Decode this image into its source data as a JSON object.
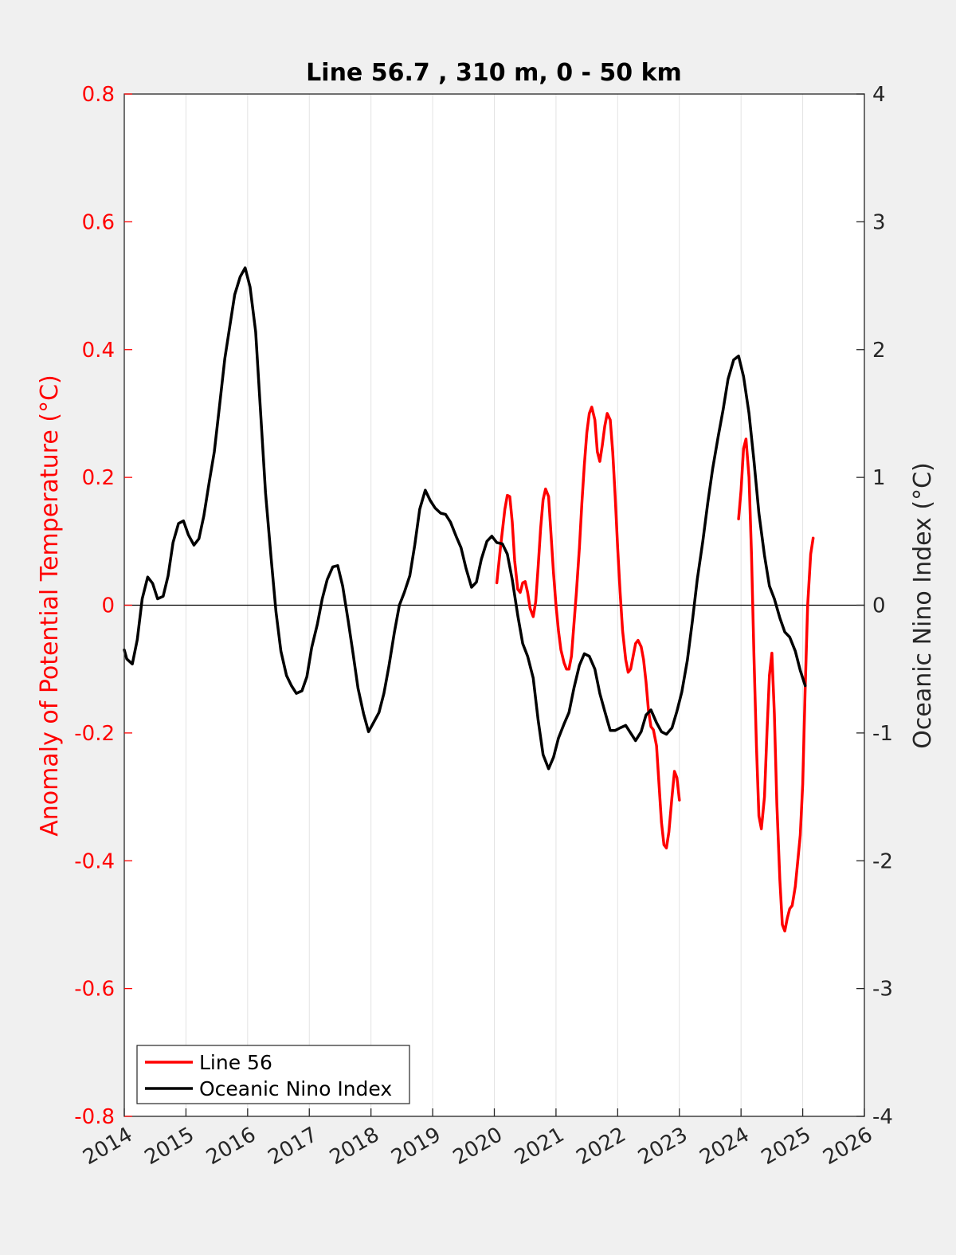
{
  "chart_data": {
    "type": "line",
    "title": "Line 56.7 , 310 m, 0 - 50 km",
    "xlabel": "",
    "ylabel_left": "Anomaly of Potential Temperature (°C)",
    "ylabel_right": "Oceanic Nino Index (°C)",
    "xlim": [
      2014,
      2026
    ],
    "ylim_left": [
      -0.8,
      0.8
    ],
    "ylim_right": [
      -4,
      4
    ],
    "x_ticks": [
      "2014",
      "2015",
      "2016",
      "2017",
      "2018",
      "2019",
      "2020",
      "2021",
      "2022",
      "2023",
      "2024",
      "2025",
      "2026"
    ],
    "y_ticks_left": [
      "-0.8",
      "-0.6",
      "-0.4",
      "-0.2",
      "0",
      "0.2",
      "0.4",
      "0.6",
      "0.8"
    ],
    "y_ticks_right": [
      "-4",
      "-3",
      "-2",
      "-1",
      "0",
      "1",
      "2",
      "3",
      "4"
    ],
    "grid": "vertical",
    "zero_line": true,
    "legend_position": "bottom-left",
    "colors": {
      "line56": "#ff0000",
      "oni": "#000000",
      "left_axis": "#ff0000",
      "right_axis": "#262626"
    },
    "series": [
      {
        "name": "Line 56",
        "axis": "left",
        "segments": [
          [
            [
              2020.04,
              0.035
            ],
            [
              2020.1,
              0.09
            ],
            [
              2020.17,
              0.15
            ],
            [
              2020.21,
              0.172
            ],
            [
              2020.25,
              0.17
            ],
            [
              2020.29,
              0.13
            ],
            [
              2020.33,
              0.07
            ],
            [
              2020.38,
              0.025
            ],
            [
              2020.42,
              0.02
            ],
            [
              2020.46,
              0.035
            ],
            [
              2020.5,
              0.037
            ],
            [
              2020.54,
              0.02
            ],
            [
              2020.58,
              -0.005
            ],
            [
              2020.63,
              -0.018
            ],
            [
              2020.67,
              0.005
            ],
            [
              2020.71,
              0.06
            ],
            [
              2020.75,
              0.12
            ],
            [
              2020.79,
              0.165
            ],
            [
              2020.83,
              0.182
            ],
            [
              2020.88,
              0.17
            ],
            [
              2020.92,
              0.11
            ],
            [
              2020.96,
              0.05
            ],
            [
              2021.0,
              0.0
            ],
            [
              2021.04,
              -0.04
            ],
            [
              2021.08,
              -0.07
            ],
            [
              2021.13,
              -0.09
            ],
            [
              2021.17,
              -0.1
            ],
            [
              2021.21,
              -0.1
            ],
            [
              2021.25,
              -0.08
            ],
            [
              2021.29,
              -0.03
            ],
            [
              2021.33,
              0.02
            ],
            [
              2021.38,
              0.09
            ],
            [
              2021.42,
              0.16
            ],
            [
              2021.46,
              0.22
            ],
            [
              2021.5,
              0.27
            ],
            [
              2021.54,
              0.3
            ],
            [
              2021.58,
              0.31
            ],
            [
              2021.63,
              0.29
            ],
            [
              2021.67,
              0.24
            ],
            [
              2021.71,
              0.225
            ],
            [
              2021.75,
              0.25
            ],
            [
              2021.79,
              0.28
            ],
            [
              2021.83,
              0.3
            ],
            [
              2021.88,
              0.29
            ],
            [
              2021.92,
              0.24
            ],
            [
              2021.96,
              0.17
            ],
            [
              2022.0,
              0.09
            ],
            [
              2022.04,
              0.02
            ],
            [
              2022.08,
              -0.04
            ],
            [
              2022.13,
              -0.085
            ],
            [
              2022.17,
              -0.105
            ],
            [
              2022.21,
              -0.1
            ],
            [
              2022.25,
              -0.08
            ],
            [
              2022.29,
              -0.06
            ],
            [
              2022.33,
              -0.055
            ],
            [
              2022.38,
              -0.065
            ],
            [
              2022.42,
              -0.085
            ],
            [
              2022.46,
              -0.12
            ],
            [
              2022.5,
              -0.165
            ],
            [
              2022.54,
              -0.19
            ],
            [
              2022.58,
              -0.195
            ],
            [
              2022.63,
              -0.22
            ],
            [
              2022.67,
              -0.28
            ],
            [
              2022.71,
              -0.34
            ],
            [
              2022.75,
              -0.375
            ],
            [
              2022.79,
              -0.38
            ],
            [
              2022.83,
              -0.355
            ],
            [
              2022.88,
              -0.3
            ],
            [
              2022.92,
              -0.26
            ],
            [
              2022.96,
              -0.27
            ],
            [
              2023.0,
              -0.305
            ]
          ],
          [
            [
              2023.96,
              0.135
            ],
            [
              2024.0,
              0.18
            ],
            [
              2024.04,
              0.245
            ],
            [
              2024.08,
              0.26
            ],
            [
              2024.13,
              0.2
            ],
            [
              2024.17,
              0.08
            ],
            [
              2024.21,
              -0.08
            ],
            [
              2024.25,
              -0.22
            ],
            [
              2024.29,
              -0.33
            ],
            [
              2024.33,
              -0.35
            ],
            [
              2024.38,
              -0.3
            ],
            [
              2024.42,
              -0.2
            ],
            [
              2024.46,
              -0.11
            ],
            [
              2024.5,
              -0.075
            ],
            [
              2024.54,
              -0.17
            ],
            [
              2024.58,
              -0.31
            ],
            [
              2024.63,
              -0.43
            ],
            [
              2024.67,
              -0.5
            ],
            [
              2024.71,
              -0.51
            ],
            [
              2024.75,
              -0.49
            ],
            [
              2024.79,
              -0.475
            ],
            [
              2024.83,
              -0.47
            ],
            [
              2024.88,
              -0.44
            ],
            [
              2024.92,
              -0.4
            ],
            [
              2024.96,
              -0.36
            ],
            [
              2025.0,
              -0.28
            ],
            [
              2025.04,
              -0.13
            ],
            [
              2025.08,
              0.0
            ],
            [
              2025.13,
              0.08
            ],
            [
              2025.17,
              0.105
            ]
          ]
        ]
      },
      {
        "name": "Oceanic Nino Index",
        "axis": "right",
        "points": [
          [
            2014.0,
            -0.35
          ],
          [
            2014.04,
            -0.42
          ],
          [
            2014.13,
            -0.46
          ],
          [
            2014.21,
            -0.27
          ],
          [
            2014.29,
            0.05
          ],
          [
            2014.38,
            0.22
          ],
          [
            2014.46,
            0.17
          ],
          [
            2014.54,
            0.05
          ],
          [
            2014.63,
            0.07
          ],
          [
            2014.71,
            0.23
          ],
          [
            2014.79,
            0.49
          ],
          [
            2014.88,
            0.64
          ],
          [
            2014.96,
            0.66
          ],
          [
            2015.04,
            0.55
          ],
          [
            2015.13,
            0.47
          ],
          [
            2015.21,
            0.52
          ],
          [
            2015.29,
            0.7
          ],
          [
            2015.38,
            0.97
          ],
          [
            2015.46,
            1.2
          ],
          [
            2015.54,
            1.54
          ],
          [
            2015.63,
            1.93
          ],
          [
            2015.71,
            2.18
          ],
          [
            2015.79,
            2.43
          ],
          [
            2015.88,
            2.57
          ],
          [
            2015.96,
            2.64
          ],
          [
            2016.04,
            2.49
          ],
          [
            2016.13,
            2.14
          ],
          [
            2016.21,
            1.51
          ],
          [
            2016.29,
            0.88
          ],
          [
            2016.38,
            0.37
          ],
          [
            2016.46,
            -0.05
          ],
          [
            2016.54,
            -0.36
          ],
          [
            2016.63,
            -0.55
          ],
          [
            2016.71,
            -0.63
          ],
          [
            2016.79,
            -0.69
          ],
          [
            2016.88,
            -0.67
          ],
          [
            2016.96,
            -0.56
          ],
          [
            2017.04,
            -0.33
          ],
          [
            2017.13,
            -0.15
          ],
          [
            2017.21,
            0.05
          ],
          [
            2017.29,
            0.2
          ],
          [
            2017.38,
            0.3
          ],
          [
            2017.46,
            0.31
          ],
          [
            2017.54,
            0.15
          ],
          [
            2017.63,
            -0.12
          ],
          [
            2017.71,
            -0.38
          ],
          [
            2017.79,
            -0.65
          ],
          [
            2017.88,
            -0.85
          ],
          [
            2017.96,
            -0.99
          ],
          [
            2018.04,
            -0.92
          ],
          [
            2018.13,
            -0.84
          ],
          [
            2018.21,
            -0.69
          ],
          [
            2018.29,
            -0.48
          ],
          [
            2018.38,
            -0.21
          ],
          [
            2018.46,
            0.0
          ],
          [
            2018.54,
            0.1
          ],
          [
            2018.63,
            0.23
          ],
          [
            2018.71,
            0.47
          ],
          [
            2018.79,
            0.75
          ],
          [
            2018.88,
            0.9
          ],
          [
            2018.96,
            0.82
          ],
          [
            2019.04,
            0.76
          ],
          [
            2019.13,
            0.72
          ],
          [
            2019.21,
            0.71
          ],
          [
            2019.29,
            0.65
          ],
          [
            2019.38,
            0.54
          ],
          [
            2019.46,
            0.45
          ],
          [
            2019.54,
            0.29
          ],
          [
            2019.63,
            0.14
          ],
          [
            2019.71,
            0.18
          ],
          [
            2019.79,
            0.36
          ],
          [
            2019.88,
            0.5
          ],
          [
            2019.96,
            0.54
          ],
          [
            2020.04,
            0.49
          ],
          [
            2020.13,
            0.48
          ],
          [
            2020.21,
            0.4
          ],
          [
            2020.29,
            0.2
          ],
          [
            2020.38,
            -0.08
          ],
          [
            2020.46,
            -0.3
          ],
          [
            2020.54,
            -0.4
          ],
          [
            2020.63,
            -0.57
          ],
          [
            2020.71,
            -0.9
          ],
          [
            2020.79,
            -1.17
          ],
          [
            2020.88,
            -1.28
          ],
          [
            2020.96,
            -1.19
          ],
          [
            2021.04,
            -1.04
          ],
          [
            2021.13,
            -0.93
          ],
          [
            2021.21,
            -0.84
          ],
          [
            2021.29,
            -0.65
          ],
          [
            2021.38,
            -0.47
          ],
          [
            2021.46,
            -0.38
          ],
          [
            2021.54,
            -0.4
          ],
          [
            2021.63,
            -0.5
          ],
          [
            2021.71,
            -0.69
          ],
          [
            2021.79,
            -0.83
          ],
          [
            2021.88,
            -0.98
          ],
          [
            2021.96,
            -0.98
          ],
          [
            2022.04,
            -0.96
          ],
          [
            2022.13,
            -0.94
          ],
          [
            2022.21,
            -1.0
          ],
          [
            2022.29,
            -1.06
          ],
          [
            2022.38,
            -0.99
          ],
          [
            2022.46,
            -0.86
          ],
          [
            2022.54,
            -0.82
          ],
          [
            2022.63,
            -0.92
          ],
          [
            2022.71,
            -0.99
          ],
          [
            2022.79,
            -1.01
          ],
          [
            2022.88,
            -0.96
          ],
          [
            2022.96,
            -0.83
          ],
          [
            2023.04,
            -0.68
          ],
          [
            2023.13,
            -0.43
          ],
          [
            2023.21,
            -0.13
          ],
          [
            2023.29,
            0.2
          ],
          [
            2023.38,
            0.5
          ],
          [
            2023.46,
            0.8
          ],
          [
            2023.54,
            1.07
          ],
          [
            2023.63,
            1.32
          ],
          [
            2023.71,
            1.53
          ],
          [
            2023.79,
            1.77
          ],
          [
            2023.88,
            1.92
          ],
          [
            2023.96,
            1.95
          ],
          [
            2024.04,
            1.79
          ],
          [
            2024.13,
            1.5
          ],
          [
            2024.21,
            1.13
          ],
          [
            2024.29,
            0.72
          ],
          [
            2024.38,
            0.39
          ],
          [
            2024.46,
            0.15
          ],
          [
            2024.54,
            0.05
          ],
          [
            2024.63,
            -0.1
          ],
          [
            2024.71,
            -0.21
          ],
          [
            2024.79,
            -0.25
          ],
          [
            2024.88,
            -0.36
          ],
          [
            2024.96,
            -0.51
          ],
          [
            2025.04,
            -0.63
          ]
        ]
      }
    ]
  }
}
